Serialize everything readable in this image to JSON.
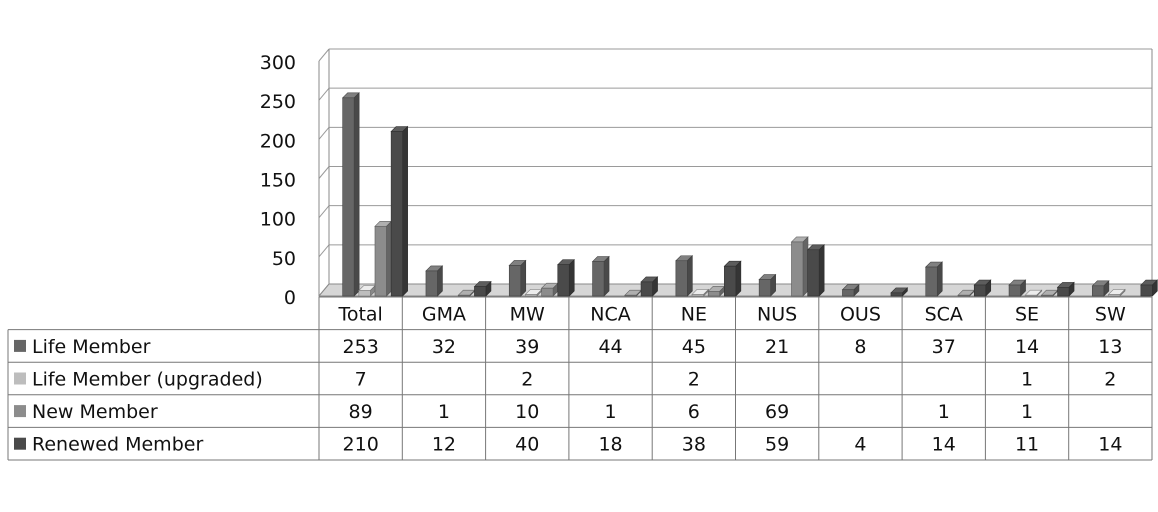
{
  "chart_data": {
    "type": "bar",
    "style": "3d-clustered-column-with-data-table",
    "categories": [
      "Total",
      "GMA",
      "MW",
      "NCA",
      "NE",
      "NUS",
      "OUS",
      "SCA",
      "SE",
      "SW"
    ],
    "series": [
      {
        "name": "Life Member",
        "color": "#666666",
        "values": [
          253,
          32,
          39,
          44,
          45,
          21,
          8,
          37,
          14,
          13
        ]
      },
      {
        "name": "Life Member (upgraded)",
        "color": "#bdbdbd",
        "values": [
          7,
          null,
          2,
          null,
          2,
          null,
          null,
          null,
          1,
          2
        ]
      },
      {
        "name": "New Member",
        "color": "#8c8c8c",
        "values": [
          89,
          1,
          10,
          1,
          6,
          69,
          null,
          1,
          1,
          null
        ]
      },
      {
        "name": "Renewed Member",
        "color": "#4a4a4a",
        "values": [
          210,
          12,
          40,
          18,
          38,
          59,
          4,
          14,
          11,
          14
        ]
      }
    ],
    "yticks": [
      0,
      50,
      100,
      150,
      200,
      250,
      300
    ],
    "ylim": [
      0,
      300
    ],
    "grid": true,
    "legend": "left-of-data-table"
  }
}
